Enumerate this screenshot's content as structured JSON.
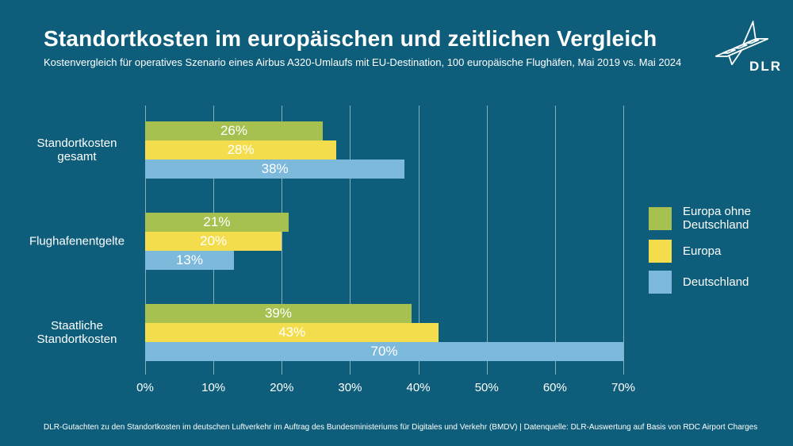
{
  "page": {
    "background": "#0e5e7b"
  },
  "header": {
    "title": "Standortkosten im europäischen und zeitlichen Vergleich",
    "subtitle": "Kostenvergleich für operatives Szenario eines Airbus A320-Umlaufs mit EU-Destination, 100 europäische Flughäfen, Mai 2019 vs. Mai 2024",
    "logo_text": "DLR"
  },
  "footer": {
    "source": "DLR-Gutachten zu den Standortkosten im deutschen Luftverkehr im Auftrag des Bundesministeriums für Digitales und Verkehr (BMDV) | Datenquelle: DLR-Auswertung auf Basis von RDC Airport Charges"
  },
  "chart_data": {
    "type": "bar",
    "orientation": "horizontal",
    "title": "Standortkosten im europäischen und zeitlichen Vergleich",
    "categories": [
      "Standortkosten gesamt",
      "Flughafenentgelte",
      "Staatliche Standortkosten"
    ],
    "series": [
      {
        "name": "Europa ohne Deutschland",
        "color": "#a6c150",
        "values": [
          26,
          21,
          39
        ]
      },
      {
        "name": "Europa",
        "color": "#f3dd4c",
        "values": [
          28,
          20,
          43
        ]
      },
      {
        "name": "Deutschland",
        "color": "#7db9db",
        "values": [
          38,
          13,
          70
        ]
      }
    ],
    "value_suffix": "%",
    "xlim": [
      0,
      70
    ],
    "x_ticks": [
      "0%",
      "10%",
      "20%",
      "30%",
      "40%",
      "50%",
      "60%",
      "70%"
    ],
    "grid": true,
    "legend_position": "right",
    "bar_label_color": "#ffffff"
  }
}
